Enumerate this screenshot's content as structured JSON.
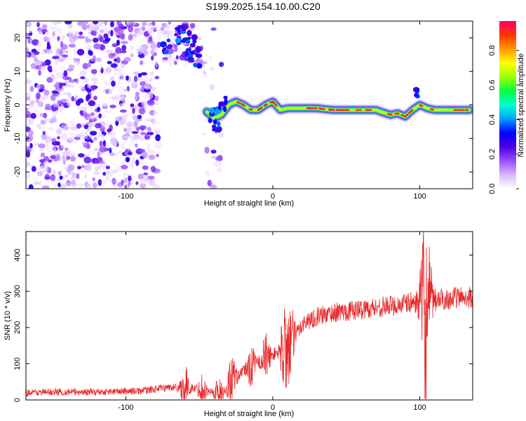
{
  "title": "S199.2025.154.10.00.C20",
  "chart_data": [
    {
      "type": "heatmap",
      "xlabel": "Height of straight line (km)",
      "ylabel": "Frequency (Hz)",
      "xlim": [
        -168,
        136
      ],
      "ylim": [
        -25,
        25
      ],
      "xticks": [
        -100,
        0,
        100
      ],
      "yticks": [
        -20,
        -10,
        0,
        10,
        20
      ],
      "colorbar": {
        "label": "Normalized spectral amplitude",
        "ticks": [
          0.0,
          0.2,
          0.4,
          0.6,
          0.8
        ],
        "range": [
          0,
          0.97
        ],
        "colormap": [
          "#ffffff",
          "#d9b8ff",
          "#9b4dff",
          "#4b00e6",
          "#0000ff",
          "#00a0ff",
          "#00ffd0",
          "#00ff40",
          "#a0ff00",
          "#ffff00",
          "#ff9900",
          "#ff3300",
          "#ff0066"
        ]
      },
      "trace": {
        "description": "narrow high-amplitude band near 0 Hz",
        "x": [
          -45,
          -40,
          -35,
          -30,
          -25,
          -20,
          -15,
          -10,
          -5,
          0,
          5,
          10,
          20,
          30,
          40,
          50,
          60,
          70,
          80,
          85,
          90,
          95,
          100,
          105,
          110,
          120,
          130,
          134
        ],
        "y": [
          -2,
          -4,
          -3,
          0,
          1,
          0,
          -1.5,
          -1.5,
          0,
          1,
          -1.5,
          -1,
          -1,
          -1,
          -1.5,
          -1.5,
          -1.5,
          -1.5,
          -3,
          -2.5,
          -3.5,
          -1.5,
          0,
          -1,
          -1.5,
          -1.5,
          -1.5,
          -1.5
        ]
      },
      "noise_regions": [
        {
          "x_range": [
            -168,
            -78
          ],
          "f_range": [
            -25,
            25
          ],
          "level": "moderate"
        },
        {
          "x_range": [
            -78,
            -48
          ],
          "f_range": [
            12,
            25
          ],
          "level": "moderate"
        },
        {
          "x_range": [
            -48,
            -35
          ],
          "f_range": [
            -25,
            25
          ],
          "level": "sparse"
        }
      ]
    },
    {
      "type": "line",
      "xlabel": "Height of straight line (km)",
      "ylabel": "SNR (10 * v/v)",
      "xlim": [
        -168,
        136
      ],
      "ylim": [
        0,
        465
      ],
      "xticks": [
        -100,
        0,
        100
      ],
      "yticks": [
        0,
        100,
        200,
        300,
        400
      ],
      "series": [
        {
          "color": "#e8282a",
          "x": [
            -168,
            -150,
            -120,
            -90,
            -80,
            -70,
            -60,
            -50,
            -45,
            -40,
            -35,
            -30,
            -25,
            -20,
            -15,
            -10,
            -5,
            0,
            5,
            10,
            15,
            20,
            30,
            40,
            50,
            60,
            70,
            80,
            90,
            95,
            100,
            102,
            104,
            106,
            108,
            110,
            120,
            130,
            136
          ],
          "y": [
            20,
            22,
            22,
            25,
            30,
            35,
            35,
            30,
            25,
            20,
            15,
            40,
            60,
            80,
            95,
            105,
            115,
            125,
            135,
            150,
            175,
            210,
            230,
            240,
            245,
            250,
            255,
            260,
            265,
            270,
            270,
            260,
            200,
            240,
            270,
            275,
            280,
            285,
            285
          ]
        }
      ],
      "bursts": [
        {
          "x": -60,
          "amplitude": 55
        },
        {
          "x": -48,
          "amplitude": 40
        },
        {
          "x": -37,
          "amplitude": 45
        },
        {
          "x": -28,
          "amplitude": 85
        },
        {
          "x": -15,
          "amplitude": 50
        },
        {
          "x": -5,
          "amplitude": 60
        },
        {
          "x": 8,
          "amplitude": 110
        },
        {
          "x": 12,
          "amplitude": 90
        },
        {
          "x": 103,
          "amplitude": 230
        },
        {
          "x": 106,
          "amplitude": 120
        }
      ]
    }
  ]
}
